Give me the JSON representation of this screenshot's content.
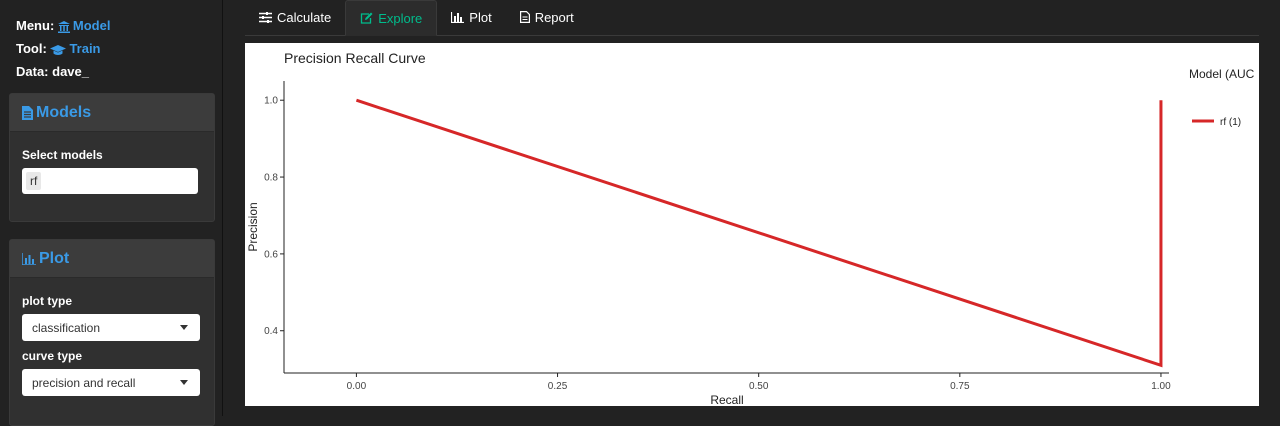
{
  "sidebar": {
    "menu_label": "Menu:",
    "menu_value": "Model",
    "tool_label": "Tool:",
    "tool_value": "Train",
    "data_label": "Data:",
    "data_value": "dave_",
    "models_panel": {
      "title": "Models",
      "select_label": "Select models",
      "selected": "rf"
    },
    "plot_panel": {
      "title": "Plot",
      "plot_type_label": "plot type",
      "plot_type_value": "classification",
      "curve_type_label": "curve type",
      "curve_type_value": "precision and recall"
    }
  },
  "tabs": [
    {
      "label": "Calculate",
      "icon": "sliders-icon",
      "active": false
    },
    {
      "label": "Explore",
      "icon": "edit-icon",
      "active": true
    },
    {
      "label": "Plot",
      "icon": "bar-chart-icon",
      "active": false
    },
    {
      "label": "Report",
      "icon": "file-icon",
      "active": false
    }
  ],
  "colors": {
    "accent": "#3a9ae6",
    "active_tab": "#00bc8c",
    "line": "#d62728"
  },
  "chart_data": {
    "type": "line",
    "title": "Precision Recall Curve",
    "xlabel": "Recall",
    "ylabel": "Precision",
    "xlim": [
      -0.09,
      1.01
    ],
    "ylim": [
      0.29,
      1.05
    ],
    "x_ticks": [
      "0.00",
      "0.25",
      "0.50",
      "0.75",
      "1.00"
    ],
    "y_ticks": [
      "0.4",
      "0.6",
      "0.8",
      "1.0"
    ],
    "legend_title": "Model (AUC",
    "legend_position": "right",
    "grid": false,
    "series": [
      {
        "name": "rf (1)",
        "color": "#d62728",
        "x": [
          0.0,
          1.0,
          1.0
        ],
        "y": [
          1.0,
          0.31,
          1.0
        ]
      }
    ]
  }
}
